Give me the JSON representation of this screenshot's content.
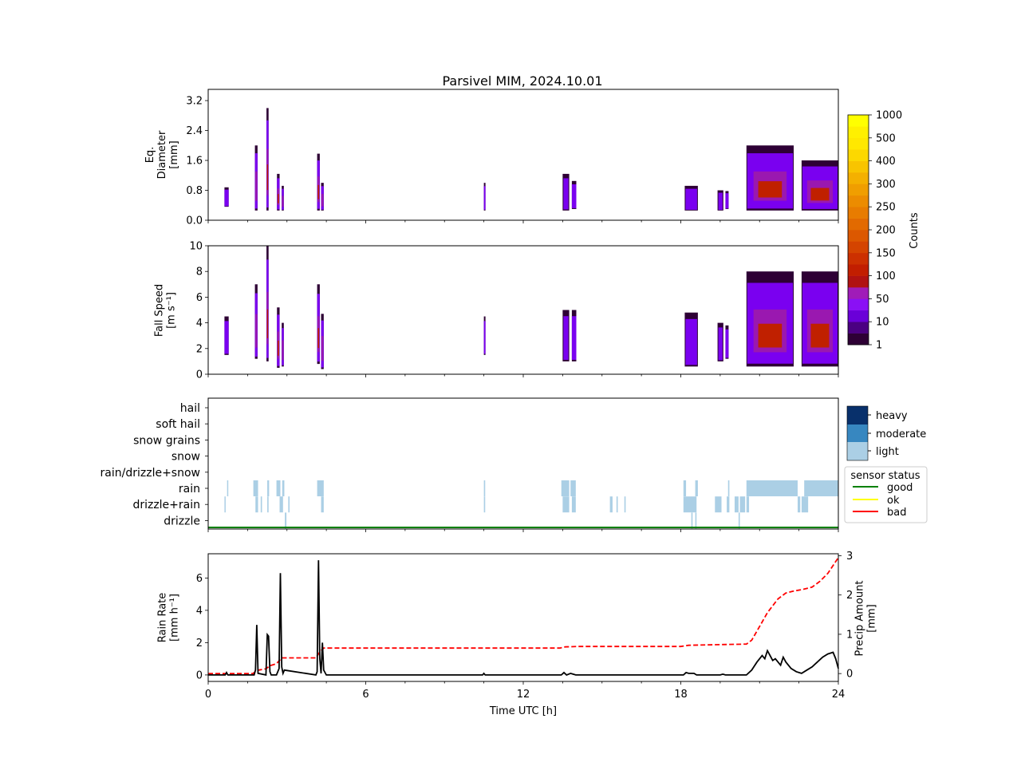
{
  "figure_title": "Parsivel MIM, 2024.10.01",
  "chart_data": [
    {
      "type": "heatmap",
      "ylabel": [
        "Eq.",
        "Diameter",
        "[mm]"
      ],
      "ylim": [
        0,
        3.5
      ],
      "yticks": [
        0.0,
        0.8,
        1.6,
        2.4,
        3.2
      ],
      "ytick_labels": [
        "0.0",
        "0.8",
        "1.6",
        "2.4",
        "3.2"
      ],
      "xlim": [
        0,
        24
      ],
      "events": [
        {
          "t0": 0.62,
          "t1": 0.78,
          "lo": 0.36,
          "hi": 0.88,
          "level": 1
        },
        {
          "t0": 1.78,
          "t1": 1.88,
          "lo": 0.26,
          "hi": 2.0,
          "level": 2
        },
        {
          "t0": 2.22,
          "t1": 2.3,
          "lo": 0.26,
          "hi": 3.0,
          "level": 3
        },
        {
          "t0": 2.62,
          "t1": 2.72,
          "lo": 0.26,
          "hi": 1.24,
          "level": 3
        },
        {
          "t0": 2.8,
          "t1": 2.88,
          "lo": 0.26,
          "hi": 0.92,
          "level": 2
        },
        {
          "t0": 4.15,
          "t1": 4.25,
          "lo": 0.26,
          "hi": 1.78,
          "level": 3
        },
        {
          "t0": 4.3,
          "t1": 4.4,
          "lo": 0.26,
          "hi": 1.0,
          "level": 2
        },
        {
          "t0": 10.5,
          "t1": 10.56,
          "lo": 0.26,
          "hi": 1.0,
          "level": 1
        },
        {
          "t0": 13.5,
          "t1": 13.75,
          "lo": 0.26,
          "hi": 1.24,
          "level": 1
        },
        {
          "t0": 13.85,
          "t1": 14.02,
          "lo": 0.3,
          "hi": 1.05,
          "level": 1
        },
        {
          "t0": 18.15,
          "t1": 18.65,
          "lo": 0.26,
          "hi": 0.92,
          "level": 1
        },
        {
          "t0": 19.4,
          "t1": 19.62,
          "lo": 0.26,
          "hi": 0.8,
          "level": 1
        },
        {
          "t0": 19.7,
          "t1": 19.82,
          "lo": 0.3,
          "hi": 0.78,
          "level": 1
        },
        {
          "t0": 20.5,
          "t1": 22.3,
          "lo": 0.26,
          "hi": 2.0,
          "level": 3
        },
        {
          "t0": 22.6,
          "t1": 24.0,
          "lo": 0.26,
          "hi": 1.6,
          "level": 3
        }
      ]
    },
    {
      "type": "heatmap",
      "ylabel": [
        "Fall Speed",
        "[m s⁻¹]"
      ],
      "ylim": [
        0,
        10
      ],
      "yticks": [
        0,
        2,
        4,
        6,
        8,
        10
      ],
      "ytick_labels": [
        "0",
        "2",
        "4",
        "6",
        "8",
        "10"
      ],
      "xlim": [
        0,
        24
      ],
      "events": [
        {
          "t0": 0.62,
          "t1": 0.78,
          "lo": 1.5,
          "hi": 4.5,
          "level": 1
        },
        {
          "t0": 1.78,
          "t1": 1.88,
          "lo": 1.2,
          "hi": 7.0,
          "level": 2
        },
        {
          "t0": 2.22,
          "t1": 2.3,
          "lo": 1.0,
          "hi": 10.0,
          "level": 3
        },
        {
          "t0": 2.62,
          "t1": 2.72,
          "lo": 0.5,
          "hi": 5.2,
          "level": 3
        },
        {
          "t0": 2.8,
          "t1": 2.88,
          "lo": 0.6,
          "hi": 4.0,
          "level": 2
        },
        {
          "t0": 4.15,
          "t1": 4.25,
          "lo": 0.8,
          "hi": 7.0,
          "level": 3
        },
        {
          "t0": 4.3,
          "t1": 4.4,
          "lo": 0.4,
          "hi": 4.7,
          "level": 2
        },
        {
          "t0": 10.5,
          "t1": 10.56,
          "lo": 1.5,
          "hi": 4.5,
          "level": 1
        },
        {
          "t0": 13.5,
          "t1": 13.75,
          "lo": 1.0,
          "hi": 5.0,
          "level": 1
        },
        {
          "t0": 13.85,
          "t1": 14.02,
          "lo": 1.0,
          "hi": 5.0,
          "level": 1
        },
        {
          "t0": 18.15,
          "t1": 18.65,
          "lo": 0.6,
          "hi": 4.8,
          "level": 1
        },
        {
          "t0": 19.4,
          "t1": 19.62,
          "lo": 1.0,
          "hi": 4.0,
          "level": 1
        },
        {
          "t0": 19.7,
          "t1": 19.82,
          "lo": 1.2,
          "hi": 3.8,
          "level": 1
        },
        {
          "t0": 20.5,
          "t1": 22.3,
          "lo": 0.6,
          "hi": 8.0,
          "level": 3
        },
        {
          "t0": 22.6,
          "t1": 24.0,
          "lo": 0.6,
          "hi": 8.0,
          "level": 3
        }
      ]
    },
    {
      "type": "heatmap",
      "categories": [
        "hail",
        "soft hail",
        "snow grains",
        "snow",
        "rain/drizzle+snow",
        "rain",
        "drizzle+rain",
        "drizzle"
      ],
      "xlim": [
        0,
        24
      ],
      "rows": {
        "rain": [
          [
            0.72,
            0.76
          ],
          [
            1.72,
            1.9
          ],
          [
            2.25,
            2.32
          ],
          [
            2.6,
            2.75
          ],
          [
            2.82,
            2.9
          ],
          [
            4.15,
            4.4
          ],
          [
            10.5,
            10.55
          ],
          [
            13.45,
            13.75
          ],
          [
            13.8,
            14.0
          ],
          [
            18.1,
            18.2
          ],
          [
            18.55,
            18.65
          ],
          [
            19.8,
            19.85
          ],
          [
            20.5,
            22.45
          ],
          [
            22.7,
            24.0
          ]
        ],
        "drizzle+rain": [
          [
            0.62,
            0.66
          ],
          [
            1.8,
            1.9
          ],
          [
            2.0,
            2.05
          ],
          [
            2.25,
            2.3
          ],
          [
            2.72,
            2.85
          ],
          [
            3.05,
            3.1
          ],
          [
            4.3,
            4.4
          ],
          [
            10.5,
            10.55
          ],
          [
            13.5,
            13.75
          ],
          [
            13.85,
            14.0
          ],
          [
            15.3,
            15.4
          ],
          [
            15.55,
            15.6
          ],
          [
            15.85,
            15.9
          ],
          [
            18.1,
            18.6
          ],
          [
            19.3,
            19.55
          ],
          [
            19.75,
            19.85
          ],
          [
            20.05,
            20.2
          ],
          [
            20.25,
            20.45
          ],
          [
            20.5,
            20.6
          ],
          [
            22.45,
            22.55
          ],
          [
            22.6,
            22.85
          ]
        ],
        "drizzle": [
          [
            2.92,
            2.98
          ],
          [
            18.4,
            18.45
          ],
          [
            18.55,
            18.6
          ],
          [
            20.2,
            20.25
          ]
        ]
      },
      "intensity_legend": [
        "heavy",
        "moderate",
        "light"
      ],
      "sensor_status_title": "sensor status",
      "sensor_status": [
        {
          "label": "good",
          "color": "#008000"
        },
        {
          "label": "ok",
          "color": "#ffff00"
        },
        {
          "label": "bad",
          "color": "#ff0000"
        }
      ],
      "status_line": {
        "value": "good"
      }
    },
    {
      "type": "line",
      "xlabel": "Time UTC [h]",
      "ylabel": [
        "Rain Rate",
        "[mm h⁻¹]"
      ],
      "y2label": [
        "Precip Amount",
        "[mm]"
      ],
      "xlim": [
        0,
        24
      ],
      "xticks": [
        0,
        6,
        12,
        18,
        24
      ],
      "xtick_labels": [
        "0",
        "6",
        "12",
        "18",
        "24"
      ],
      "ylim": [
        -0.4,
        7.5
      ],
      "yticks": [
        0,
        2,
        4,
        6
      ],
      "ytick_labels": [
        "0",
        "2",
        "4",
        "6"
      ],
      "y2lim": [
        -0.2,
        3.05
      ],
      "y2ticks": [
        0,
        1,
        2,
        3
      ],
      "y2tick_labels": [
        "0",
        "1",
        "2",
        "3"
      ],
      "series": [
        {
          "color": "#000000",
          "style": "solid",
          "x": [
            0,
            0.65,
            0.7,
            0.75,
            1.75,
            1.8,
            1.85,
            1.9,
            2.2,
            2.25,
            2.3,
            2.35,
            2.4,
            2.6,
            2.7,
            2.75,
            2.8,
            2.85,
            2.9,
            4.1,
            4.15,
            4.2,
            4.25,
            4.3,
            4.35,
            4.4,
            4.5,
            10.45,
            10.5,
            10.55,
            13.45,
            13.55,
            13.65,
            13.8,
            13.9,
            14.0,
            18.1,
            18.2,
            18.3,
            18.5,
            18.6,
            19.5,
            19.6,
            19.7,
            20.5,
            20.7,
            20.9,
            21.1,
            21.2,
            21.3,
            21.4,
            21.5,
            21.6,
            21.8,
            21.9,
            22.0,
            22.2,
            22.4,
            22.6,
            22.8,
            23.0,
            23.2,
            23.4,
            23.6,
            23.8,
            23.9,
            24.0
          ],
          "y": [
            0,
            0,
            0.15,
            0,
            0,
            0.3,
            3.1,
            0.1,
            0,
            2.5,
            2.4,
            0.2,
            0,
            0,
            0.4,
            6.3,
            0.5,
            0.1,
            0.3,
            0,
            0.2,
            7.1,
            1.0,
            0.1,
            2.0,
            0.3,
            0,
            0,
            0.1,
            0,
            0,
            0.15,
            0,
            0.1,
            0.05,
            0,
            0,
            0.15,
            0.1,
            0.1,
            0,
            0,
            0.05,
            0,
            0,
            0.3,
            0.8,
            1.2,
            1.0,
            1.5,
            1.2,
            0.9,
            1.0,
            0.6,
            1.1,
            0.8,
            0.4,
            0.2,
            0.1,
            0.3,
            0.5,
            0.8,
            1.1,
            1.3,
            1.4,
            1.0,
            0.4
          ]
        },
        {
          "color": "#ff0000",
          "style": "dashed",
          "axis": "right",
          "x": [
            0,
            1.7,
            1.85,
            2.2,
            2.35,
            2.6,
            2.8,
            4.1,
            4.25,
            4.4,
            13.4,
            13.6,
            14.1,
            18.0,
            18.3,
            20.5,
            20.7,
            21.0,
            21.3,
            21.7,
            22.0,
            22.3,
            22.7,
            23.0,
            23.3,
            23.6,
            23.9,
            24.0
          ],
          "y": [
            0,
            0,
            0.08,
            0.12,
            0.2,
            0.25,
            0.4,
            0.4,
            0.55,
            0.65,
            0.65,
            0.68,
            0.69,
            0.69,
            0.72,
            0.75,
            0.85,
            1.2,
            1.55,
            1.9,
            2.05,
            2.1,
            2.15,
            2.2,
            2.35,
            2.55,
            2.85,
            2.95
          ]
        }
      ]
    }
  ],
  "colorbar": {
    "label": "Counts",
    "tick_labels": [
      "1",
      "10",
      "50",
      "100",
      "150",
      "200",
      "250",
      "300",
      "400",
      "500",
      "1000"
    ],
    "colors": [
      "#2e0035",
      "#4b0082",
      "#6a00d8",
      "#8a10f5",
      "#a01cb8",
      "#b01212",
      "#c21e00",
      "#cc3000",
      "#d44400",
      "#dc5800",
      "#e26a00",
      "#e87c00",
      "#ec8c00",
      "#f09e00",
      "#f4b000",
      "#f8c400",
      "#fcd800",
      "#ffe800",
      "#fff000",
      "#ffff00"
    ]
  },
  "heat_palette": {
    "edge": "#2e0035",
    "body": "#7a00f0",
    "mid": "#9a18b0",
    "core": "#c02000"
  },
  "intensity_colors": {
    "heavy": "#08306b",
    "moderate": "#3787c0",
    "light": "#abcfe5"
  }
}
